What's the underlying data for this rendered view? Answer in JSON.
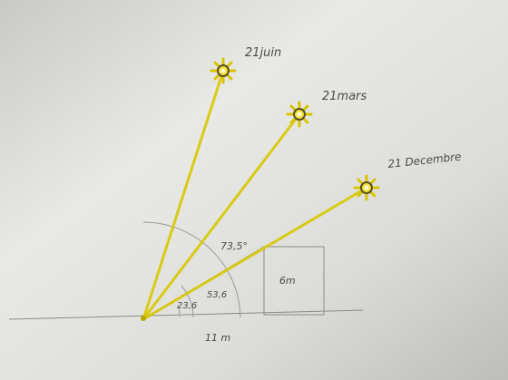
{
  "suns": [
    {
      "label": "21juin"
    },
    {
      "label": "21mars"
    },
    {
      "label": "21 Decembre"
    }
  ],
  "angles": [
    "73,5°",
    "53,6",
    "23,6"
  ],
  "building": {
    "height": "6m"
  },
  "distance": "11 m"
}
